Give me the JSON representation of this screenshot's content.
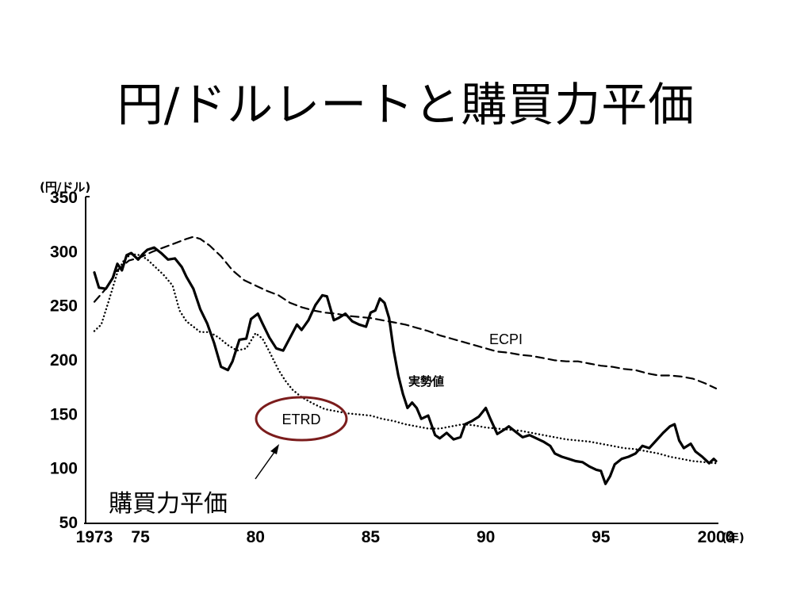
{
  "slide": {
    "title": "円/ドルレートと購買力平価"
  },
  "chart_data": {
    "type": "line",
    "title": "",
    "y_unit": "(円/ドル)",
    "x_unit": "(年)",
    "xlim": [
      1973,
      2000
    ],
    "ylim": [
      50,
      350
    ],
    "x_ticks": [
      1973,
      1975,
      1980,
      1985,
      1990,
      1995,
      2000
    ],
    "x_tick_labels": [
      "1973",
      "75",
      "80",
      "85",
      "90",
      "95",
      "2000"
    ],
    "y_ticks": [
      50,
      100,
      150,
      200,
      250,
      300,
      350
    ],
    "y_tick_labels": [
      "50",
      "100",
      "150",
      "200",
      "250",
      "300",
      "350"
    ],
    "grid": false,
    "series": [
      {
        "name": "実勢値",
        "style": "solid",
        "x": [
          1973.0,
          1973.2,
          1973.5,
          1973.8,
          1974.0,
          1974.2,
          1974.4,
          1974.6,
          1974.9,
          1975.1,
          1975.3,
          1975.6,
          1975.9,
          1976.2,
          1976.5,
          1976.8,
          1977.0,
          1977.3,
          1977.6,
          1977.9,
          1978.2,
          1978.5,
          1978.8,
          1979.0,
          1979.3,
          1979.6,
          1979.8,
          1980.1,
          1980.3,
          1980.6,
          1980.9,
          1981.2,
          1981.5,
          1981.8,
          1982.0,
          1982.3,
          1982.6,
          1982.9,
          1983.1,
          1983.4,
          1983.6,
          1983.9,
          1984.2,
          1984.5,
          1984.8,
          1985.0,
          1985.2,
          1985.4,
          1985.6,
          1985.8,
          1986.0,
          1986.2,
          1986.4,
          1986.6,
          1986.8,
          1987.0,
          1987.2,
          1987.5,
          1987.8,
          1988.0,
          1988.3,
          1988.6,
          1988.9,
          1989.1,
          1989.4,
          1989.7,
          1990.0,
          1990.2,
          1990.5,
          1990.8,
          1991.0,
          1991.3,
          1991.6,
          1991.9,
          1992.2,
          1992.5,
          1992.8,
          1993.0,
          1993.3,
          1993.6,
          1993.9,
          1994.2,
          1994.5,
          1994.8,
          1995.0,
          1995.2,
          1995.4,
          1995.6,
          1995.9,
          1996.2,
          1996.5,
          1996.8,
          1997.1,
          1997.4,
          1997.7,
          1998.0,
          1998.2,
          1998.4,
          1998.6,
          1998.9,
          1999.1,
          1999.4,
          1999.7,
          1999.9,
          2000.0
        ],
        "y": [
          280,
          266,
          265,
          275,
          288,
          282,
          296,
          298,
          292,
          297,
          301,
          303,
          298,
          292,
          293,
          285,
          276,
          265,
          246,
          233,
          215,
          193,
          190,
          198,
          218,
          219,
          237,
          242,
          233,
          220,
          210,
          208,
          220,
          232,
          227,
          236,
          250,
          259,
          258,
          236,
          238,
          242,
          235,
          232,
          230,
          243,
          245,
          256,
          252,
          238,
          208,
          185,
          168,
          155,
          160,
          155,
          145,
          148,
          130,
          127,
          132,
          126,
          128,
          140,
          143,
          147,
          155,
          145,
          131,
          135,
          138,
          133,
          128,
          130,
          127,
          124,
          120,
          113,
          110,
          108,
          106,
          105,
          101,
          98,
          97,
          85,
          92,
          103,
          108,
          110,
          113,
          120,
          118,
          125,
          132,
          138,
          140,
          125,
          118,
          122,
          115,
          110,
          104,
          108,
          106
        ]
      },
      {
        "name": "ECPI",
        "style": "dashed",
        "x": [
          1973.0,
          1973.5,
          1974.0,
          1974.5,
          1975.0,
          1975.5,
          1976.0,
          1976.5,
          1977.0,
          1977.3,
          1977.6,
          1978.0,
          1978.5,
          1979.0,
          1979.5,
          1980.0,
          1980.5,
          1981.0,
          1981.5,
          1982.0,
          1982.5,
          1983.0,
          1983.5,
          1984.0,
          1984.5,
          1985.0,
          1985.5,
          1986.0,
          1986.5,
          1987.0,
          1987.5,
          1988.0,
          1988.5,
          1989.0,
          1989.5,
          1990.0,
          1990.5,
          1991.0,
          1991.5,
          1992.0,
          1992.5,
          1993.0,
          1993.5,
          1994.0,
          1994.5,
          1995.0,
          1995.5,
          1996.0,
          1996.5,
          1997.0,
          1997.5,
          1998.0,
          1998.5,
          1999.0,
          1999.5,
          2000.0
        ],
        "y": [
          253,
          265,
          282,
          291,
          294,
          299,
          303,
          307,
          311,
          313,
          311,
          305,
          295,
          282,
          273,
          268,
          263,
          259,
          252,
          248,
          245,
          243,
          242,
          240,
          239,
          238,
          236,
          234,
          232,
          229,
          226,
          222,
          219,
          216,
          213,
          210,
          207,
          206,
          204,
          203,
          201,
          199,
          198,
          198,
          196,
          194,
          193,
          191,
          190,
          187,
          185,
          185,
          184,
          182,
          178,
          173
        ]
      },
      {
        "name": "購買力平価",
        "style": "dotted",
        "x": [
          1973.0,
          1973.3,
          1973.6,
          1974.0,
          1974.3,
          1974.6,
          1975.0,
          1975.3,
          1975.6,
          1976.0,
          1976.4,
          1976.7,
          1977.0,
          1977.3,
          1977.6,
          1978.0,
          1978.4,
          1978.8,
          1979.2,
          1979.6,
          1980.0,
          1980.3,
          1980.6,
          1981.0,
          1981.3,
          1981.6,
          1982.0,
          1982.5,
          1983.0,
          1983.5,
          1984.0,
          1984.5,
          1985.0,
          1985.5,
          1986.0,
          1986.5,
          1987.0,
          1987.5,
          1988.0,
          1988.5,
          1989.0,
          1989.5,
          1990.0,
          1990.5,
          1991.0,
          1991.5,
          1992.0,
          1992.5,
          1993.0,
          1993.5,
          1994.0,
          1994.5,
          1995.0,
          1995.5,
          1996.0,
          1996.5,
          1997.0,
          1997.5,
          1998.0,
          1998.5,
          1999.0,
          1999.5,
          2000.0
        ],
        "y": [
          226,
          232,
          252,
          280,
          292,
          297,
          296,
          292,
          286,
          278,
          268,
          245,
          235,
          230,
          225,
          225,
          220,
          213,
          208,
          210,
          224,
          219,
          207,
          190,
          180,
          172,
          165,
          159,
          154,
          152,
          150,
          149,
          148,
          145,
          143,
          140,
          138,
          136,
          136,
          138,
          140,
          139,
          137,
          136,
          135,
          134,
          132,
          130,
          128,
          126,
          125,
          124,
          122,
          120,
          118,
          117,
          115,
          113,
          110,
          108,
          106,
          105,
          104
        ]
      }
    ],
    "annotations": [
      {
        "text": "ECPI",
        "series": "ECPI"
      },
      {
        "text": "実勢値",
        "series": "実勢値"
      },
      {
        "text": "ETRD",
        "shape": "ellipse",
        "outline_color": "#7b1c1c"
      },
      {
        "text": "購買力平価",
        "arrow_to": "ETRD"
      }
    ],
    "colors": {
      "lines": "#000000",
      "etrd_ellipse": "#7b1c1c"
    }
  }
}
